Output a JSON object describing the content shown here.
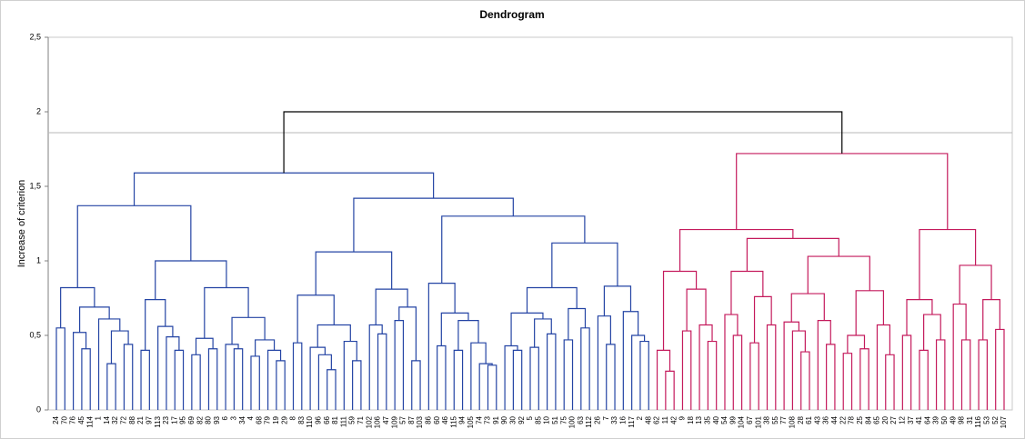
{
  "chart_data": {
    "type": "dendrogram",
    "title": "Dendrogram",
    "y_label": "Increase of criterion",
    "ylim": [
      0,
      2.5
    ],
    "yticks": [
      0,
      {
        "value": 0.5,
        "label": "0,5"
      },
      1,
      {
        "value": 1.5,
        "label": "1,5"
      },
      2,
      {
        "value": 2.5,
        "label": "2,5"
      }
    ],
    "cut_height": 1.86,
    "root_color": "#000000",
    "cluster_colors": [
      "#2444a4",
      "#c41a5c"
    ],
    "tree": [
      [
        [
          [
            [
              "24",
              "70",
              0.55
            ],
            [
              [
                "76",
                [
                  "45",
                  "114",
                  0.41
                ],
                0.52
              ],
              [
                "1",
                [
                  [
                    "14",
                    "32",
                    0.31
                  ],
                  [
                    "72",
                    "88",
                    0.44
                  ],
                  0.53
                ],
                0.61
              ],
              0.69
            ],
            0.82
          ],
          [
            [
              [
                "21",
                "97",
                0.4
              ],
              [
                "113",
                [
                  "23",
                  [
                    "17",
                    "95",
                    0.4
                  ],
                  0.49
                ],
                0.56
              ],
              0.74
            ],
            [
              [
                [
                  "69",
                  "82",
                  0.37
                ],
                [
                  "80",
                  "93",
                  0.41
                ],
                0.48
              ],
              [
                [
                  "6",
                  [
                    "3",
                    "34",
                    0.41
                  ],
                  0.44
                ],
                [
                  [
                    "4",
                    "68",
                    0.36
                  ],
                  [
                    "79",
                    [
                      "19",
                      "29",
                      0.33
                    ],
                    0.4
                  ],
                  0.47
                ],
                0.62
              ],
              0.82
            ],
            1.0
          ],
          1.37
        ],
        [
          [
            [
              [
                "8",
                "83",
                0.45
              ],
              [
                [
                  "110",
                  [
                    "96",
                    [
                      "66",
                      "81",
                      0.27
                    ],
                    0.37
                  ],
                  0.42
                ],
                [
                  "111",
                  [
                    "59",
                    "71",
                    0.33
                  ],
                  0.46
                ],
                0.57
              ],
              0.77
            ],
            [
              [
                "102",
                [
                  "106",
                  "47",
                  0.51
                ],
                0.57
              ],
              [
                [
                  "109",
                  "57",
                  0.6
                ],
                [
                  "87",
                  "103",
                  0.33
                ],
                0.69
              ],
              0.81
            ],
            1.06
          ],
          [
            [
              "86",
              [
                [
                  "60",
                  "46",
                  0.43
                ],
                [
                  [
                    "115",
                    "94",
                    0.4
                  ],
                  [
                    "105",
                    [
                      "74",
                      [
                        "73",
                        "91",
                        0.3
                      ],
                      0.31
                    ],
                    0.45
                  ],
                  0.6
                ],
                0.65
              ],
              0.85
            ],
            [
              [
                [
                  [
                    "90",
                    [
                      "30",
                      "92",
                      0.4
                    ],
                    0.43
                  ],
                  [
                    [
                      "5",
                      "85",
                      0.42
                    ],
                    [
                      "10",
                      "51",
                      0.51
                    ],
                    0.61
                  ],
                  0.65
                ],
                [
                  [
                    "75",
                    "100",
                    0.47
                  ],
                  [
                    "63",
                    "112",
                    0.55
                  ],
                  0.68
                ],
                0.82
              ],
              [
                [
                  "26",
                  [
                    "7",
                    "33",
                    0.44
                  ],
                  0.63
                ],
                [
                  "16",
                  [
                    "117",
                    [
                      "2",
                      "48",
                      0.46
                    ],
                    0.5
                  ],
                  0.66
                ],
                0.83
              ],
              1.12
            ],
            1.3
          ],
          1.42
        ],
        1.59
      ],
      [
        [
          [
            [
              "62",
              [
                "11",
                "42",
                0.26
              ],
              0.4
            ],
            [
              [
                "9",
                "18",
                0.53
              ],
              [
                "13",
                [
                  "35",
                  "40",
                  0.46
                ],
                0.57
              ],
              0.81
            ],
            0.93
          ],
          [
            [
              [
                "54",
                [
                  "99",
                  "104",
                  0.5
                ],
                0.64
              ],
              [
                [
                  "67",
                  "101",
                  0.45
                ],
                [
                  "38",
                  "55",
                  0.57
                ],
                0.76
              ],
              0.93
            ],
            [
              [
                [
                  "77",
                  [
                    "108",
                    [
                      "28",
                      "61",
                      0.39
                    ],
                    0.53
                  ],
                  0.59
                ],
                [
                  "43",
                  [
                    "36",
                    "44",
                    0.44
                  ],
                  0.6
                ],
                0.78
              ],
              [
                [
                  [
                    "22",
                    "78",
                    0.38
                  ],
                  [
                    "25",
                    "84",
                    0.41
                  ],
                  0.5
                ],
                [
                  "65",
                  [
                    "20",
                    "27",
                    0.37
                  ],
                  0.57
                ],
                0.8
              ],
              1.03
            ],
            1.15
          ],
          1.21
        ],
        [
          [
            [
              "12",
              "37",
              0.5
            ],
            [
              [
                "41",
                "64",
                0.4
              ],
              [
                "39",
                "50",
                0.47
              ],
              0.64
            ],
            0.74
          ],
          [
            [
              "49",
              [
                "98",
                "31",
                0.47
              ],
              0.71
            ],
            [
              [
                "116",
                "53",
                0.47
              ],
              [
                "52",
                "107",
                0.54
              ],
              0.74
            ],
            0.97
          ],
          1.21
        ],
        1.72
      ],
      2.0
    ]
  }
}
